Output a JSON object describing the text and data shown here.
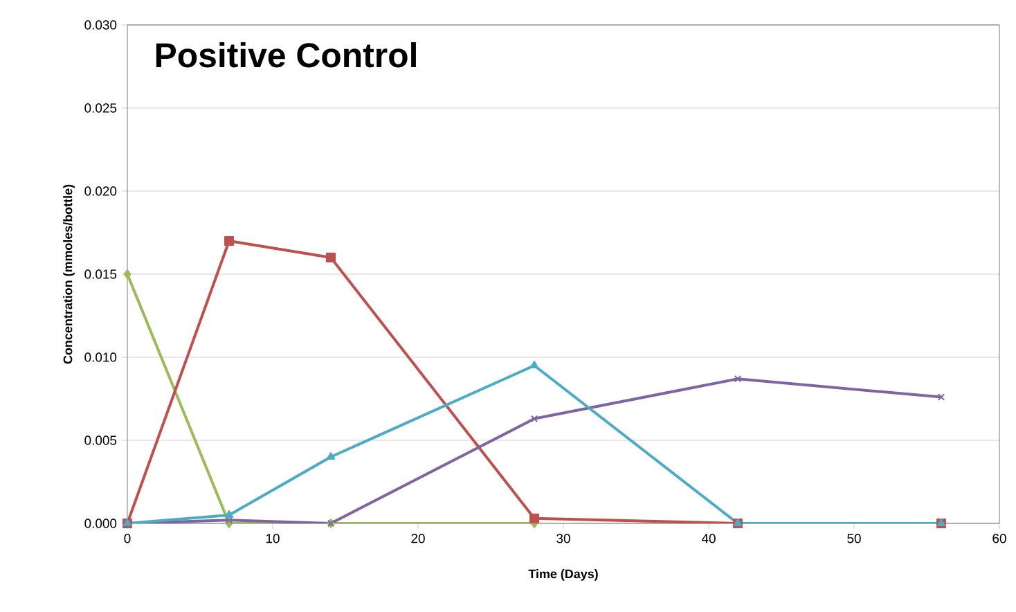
{
  "chart_data": {
    "type": "line",
    "title": "Positive Control",
    "xlabel": "Time (Days)",
    "ylabel": "Concentration (mmoles/bottle)",
    "xlim": [
      0,
      60
    ],
    "xticks": [
      0,
      10,
      20,
      30,
      40,
      50,
      60
    ],
    "ylim": [
      0,
      0.03
    ],
    "yticks": [
      {
        "value": 0,
        "label": "0.000"
      },
      {
        "value": 0.005,
        "label": "0.005"
      },
      {
        "value": 0.01,
        "label": "0.010"
      },
      {
        "value": 0.015,
        "label": "0.015"
      },
      {
        "value": 0.02,
        "label": "0.020"
      },
      {
        "value": 0.025,
        "label": "0.025"
      },
      {
        "value": 0.03,
        "label": "0.030"
      }
    ],
    "grid": "y",
    "line_style": "solid",
    "series": [
      {
        "color": "#9bbb59",
        "marker": "diamond",
        "x": [
          0,
          7,
          14,
          28
        ],
        "values": [
          0.015,
          0,
          0,
          0
        ]
      },
      {
        "color": "#c0504d",
        "marker": "square",
        "x": [
          0,
          7,
          14,
          28,
          42,
          56
        ],
        "values": [
          0,
          0.017,
          0.016,
          0.0003,
          0,
          0
        ]
      },
      {
        "color": "#8064a2",
        "marker": "cross",
        "x": [
          0,
          7,
          14,
          28,
          42,
          56
        ],
        "values": [
          0,
          0.0002,
          0,
          0.0063,
          0.0087,
          0.0076
        ]
      },
      {
        "color": "#4bacc6",
        "marker": "triangle",
        "x": [
          0,
          7,
          14,
          28,
          42,
          56
        ],
        "values": [
          0,
          0.0005,
          0.004,
          0.0095,
          0,
          0
        ]
      }
    ]
  }
}
